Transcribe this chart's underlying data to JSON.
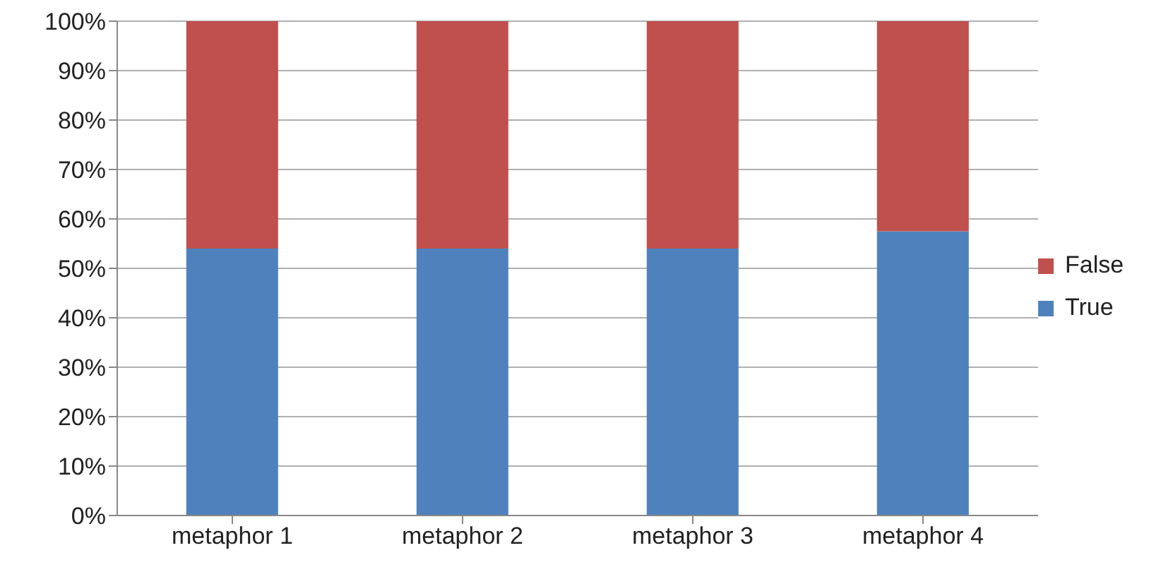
{
  "chart_data": {
    "type": "bar",
    "stacked": true,
    "categories": [
      "metaphor 1",
      "metaphor 2",
      "metaphor 3",
      "metaphor 4"
    ],
    "series": [
      {
        "name": "True",
        "color": "#4f81bd",
        "values": [
          54,
          54,
          54,
          57.5
        ]
      },
      {
        "name": "False",
        "color": "#c0504d",
        "values": [
          46,
          46,
          46,
          42.5
        ]
      }
    ],
    "ylim": [
      0,
      100
    ],
    "yticks": [
      {
        "value": 0,
        "label": "0%"
      },
      {
        "value": 10,
        "label": "10%"
      },
      {
        "value": 20,
        "label": "20%"
      },
      {
        "value": 30,
        "label": "30%"
      },
      {
        "value": 40,
        "label": "40%"
      },
      {
        "value": 50,
        "label": "50%"
      },
      {
        "value": 60,
        "label": "60%"
      },
      {
        "value": 70,
        "label": "70%"
      },
      {
        "value": 80,
        "label": "80%"
      },
      {
        "value": 90,
        "label": "90%"
      },
      {
        "value": 100,
        "label": "100%"
      }
    ],
    "grid": "y",
    "legend": "right"
  }
}
